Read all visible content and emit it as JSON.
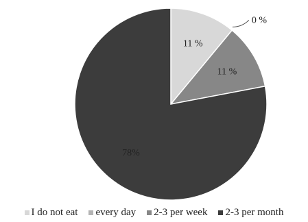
{
  "chart_data": {
    "type": "pie",
    "title": "",
    "slices": [
      {
        "label": "I do not eat",
        "value": 11,
        "display": "11 %",
        "color": "#d8d8d8"
      },
      {
        "label": "every day",
        "value": 0,
        "display": "0 %",
        "color": "#b4b4b4"
      },
      {
        "label": "2-3 per week",
        "value": 11,
        "display": "11 %",
        "color": "#878787"
      },
      {
        "label": "2-3 per month",
        "value": 78,
        "display": "78%",
        "color": "#3c3c3c"
      }
    ],
    "legend_position": "bottom"
  }
}
